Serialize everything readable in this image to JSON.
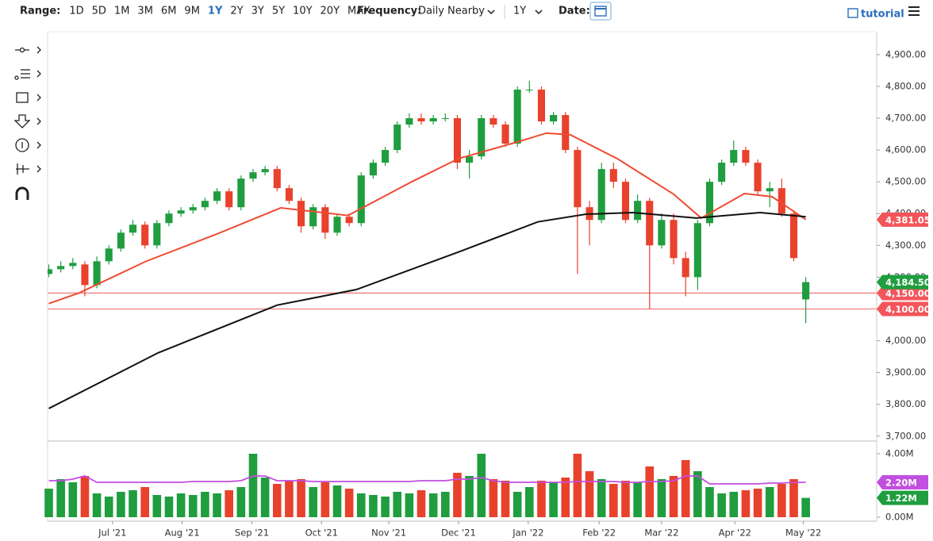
{
  "toolbar": {
    "range_label": "Range:",
    "ranges": [
      "1D",
      "5D",
      "1M",
      "3M",
      "6M",
      "9M",
      "1Y",
      "2Y",
      "3Y",
      "5Y",
      "10Y",
      "20Y",
      "MAX"
    ],
    "active_range": "1Y",
    "frequency_label": "Frequency:",
    "frequency": "Daily Nearby",
    "period": "1Y",
    "date_label": "Date:",
    "tutorial": "tutorial"
  },
  "chart_data": {
    "type": "candlestick",
    "up_color": "#1f9d3f",
    "down_color": "#e8412c",
    "open": [
      4210,
      4225,
      4235,
      4240,
      4175,
      4250,
      4290,
      4340,
      4365,
      4300,
      4370,
      4400,
      4410,
      4420,
      4440,
      4470,
      4420,
      4510,
      4530,
      4540,
      4480,
      4440,
      4360,
      4420,
      4340,
      4390,
      4370,
      4520,
      4560,
      4600,
      4680,
      4700,
      4690,
      4700,
      4700,
      4560,
      4580,
      4700,
      4680,
      4620,
      4790,
      4790,
      4690,
      4710,
      4600,
      4420,
      4380,
      4540,
      4500,
      4380,
      4440,
      4300,
      4380,
      4260,
      4200,
      4370,
      4500,
      4560,
      4600,
      4560,
      4470,
      4480,
      4400,
      4130
    ],
    "high": [
      4240,
      4250,
      4260,
      4250,
      4265,
      4300,
      4350,
      4380,
      4375,
      4380,
      4410,
      4420,
      4430,
      4450,
      4480,
      4480,
      4520,
      4540,
      4550,
      4550,
      4490,
      4450,
      4430,
      4430,
      4400,
      4400,
      4530,
      4570,
      4610,
      4690,
      4715,
      4715,
      4710,
      4715,
      4710,
      4600,
      4710,
      4710,
      4690,
      4800,
      4818,
      4800,
      4720,
      4720,
      4610,
      4440,
      4560,
      4560,
      4510,
      4460,
      4450,
      4400,
      4400,
      4280,
      4380,
      4510,
      4570,
      4630,
      4610,
      4570,
      4500,
      4510,
      4410,
      4200
    ],
    "low": [
      4200,
      4215,
      4225,
      4140,
      4165,
      4240,
      4280,
      4330,
      4290,
      4290,
      4360,
      4390,
      4400,
      4410,
      4430,
      4410,
      4410,
      4500,
      4520,
      4470,
      4430,
      4340,
      4350,
      4320,
      4330,
      4360,
      4360,
      4510,
      4550,
      4590,
      4670,
      4680,
      4680,
      4690,
      4540,
      4510,
      4570,
      4670,
      4610,
      4610,
      4780,
      4680,
      4680,
      4590,
      4210,
      4300,
      4370,
      4480,
      4370,
      4370,
      4100,
      4290,
      4240,
      4140,
      4160,
      4360,
      4490,
      4550,
      4550,
      4460,
      4420,
      4390,
      4250,
      4055
    ],
    "close": [
      4225,
      4235,
      4245,
      4175,
      4250,
      4290,
      4340,
      4365,
      4300,
      4370,
      4400,
      4410,
      4420,
      4440,
      4470,
      4420,
      4510,
      4530,
      4540,
      4480,
      4440,
      4360,
      4420,
      4340,
      4390,
      4370,
      4520,
      4560,
      4600,
      4680,
      4700,
      4690,
      4700,
      4700,
      4560,
      4580,
      4700,
      4680,
      4620,
      4790,
      4790,
      4690,
      4710,
      4600,
      4420,
      4380,
      4540,
      4500,
      4380,
      4440,
      4300,
      4380,
      4260,
      4200,
      4370,
      4500,
      4560,
      4600,
      4560,
      4470,
      4480,
      4400,
      4260,
      4184.5
    ],
    "close_label": "4,184.50",
    "xlim": [
      -0.1,
      68.9
    ],
    "xticks": [
      {
        "value": 5.3,
        "label": "Jul '21"
      },
      {
        "value": 11.1,
        "label": "Aug '21"
      },
      {
        "value": 16.9,
        "label": "Sep '21"
      },
      {
        "value": 22.7,
        "label": "Oct '21"
      },
      {
        "value": 28.3,
        "label": "Nov '21"
      },
      {
        "value": 34.1,
        "label": "Dec '21"
      },
      {
        "value": 39.9,
        "label": "Jan '22"
      },
      {
        "value": 45.8,
        "label": "Feb '22"
      },
      {
        "value": 51.0,
        "label": "Mar '22"
      },
      {
        "value": 57.1,
        "label": "Apr '22"
      },
      {
        "value": 62.8,
        "label": "May '22"
      }
    ],
    "ylim": [
      3687,
      4972
    ],
    "yticks": [
      {
        "value": 3700,
        "label": "3,700.00"
      },
      {
        "value": 3800,
        "label": "3,800.00"
      },
      {
        "value": 3900,
        "label": "3,900.00"
      },
      {
        "value": 4000,
        "label": "4,000.00"
      },
      {
        "value": 4100,
        "label": "4,100.00"
      },
      {
        "value": 4200,
        "label": "4,200.00"
      },
      {
        "value": 4300,
        "label": "4,300.00"
      },
      {
        "value": 4400,
        "label": "4,400.00"
      },
      {
        "value": 4500,
        "label": "4,500.00"
      },
      {
        "value": 4600,
        "label": "4,600.00"
      },
      {
        "value": 4700,
        "label": "4,700.00"
      },
      {
        "value": 4800,
        "label": "4,800.00"
      },
      {
        "value": 4900,
        "label": "4,900.00"
      }
    ],
    "levels": [
      {
        "value": 4150,
        "label": "4,150.00",
        "color": "#f08080"
      },
      {
        "value": 4100,
        "label": "4,100.00",
        "color": "#f08080"
      }
    ],
    "lines": [
      {
        "color": "#ee4b33",
        "x": [
          0,
          2.5,
          8.1,
          14.0,
          19.3,
          24.9,
          30.2,
          34.1,
          38.8,
          41.4,
          43.4,
          47.3,
          52.0,
          54.3,
          57.9,
          60.2,
          63
        ],
        "values": [
          4117,
          4150,
          4250,
          4336,
          4418,
          4394,
          4500,
          4573,
          4623,
          4653,
          4648,
          4573,
          4461,
          4386,
          4463,
          4453,
          4381.05
        ],
        "last_label": "4,381.05"
      },
      {
        "color": "#111111",
        "x": [
          0,
          9.1,
          19.0,
          25.6,
          34.1,
          40.7,
          44.7,
          48.6,
          53.9,
          59.2,
          63
        ],
        "values": [
          3787,
          3962,
          4112,
          4161,
          4279,
          4374,
          4398,
          4403,
          4386,
          4403,
          4390
        ]
      }
    ],
    "volume": [
      1.8,
      2.4,
      2.2,
      2.6,
      1.5,
      1.3,
      1.6,
      1.7,
      1.9,
      1.4,
      1.3,
      1.5,
      1.4,
      1.6,
      1.5,
      1.7,
      1.9,
      4.0,
      2.5,
      2.1,
      2.3,
      2.4,
      1.9,
      2.2,
      2.0,
      1.8,
      1.5,
      1.4,
      1.3,
      1.6,
      1.5,
      1.7,
      1.5,
      1.6,
      2.8,
      2.6,
      4.0,
      2.4,
      2.3,
      1.6,
      1.9,
      2.3,
      2.2,
      2.5,
      4.0,
      2.9,
      2.4,
      2.1,
      2.3,
      2.2,
      3.2,
      2.4,
      2.6,
      3.6,
      2.9,
      1.9,
      1.5,
      1.6,
      1.7,
      1.8,
      1.9,
      2.1,
      2.4,
      1.22
    ],
    "volume_label": "1.22M",
    "volume_avg": {
      "color": "#c14fdf",
      "values": [
        2.3,
        2.3,
        2.4,
        2.6,
        2.2,
        2.2,
        2.2,
        2.2,
        2.2,
        2.2,
        2.2,
        2.2,
        2.25,
        2.25,
        2.25,
        2.25,
        2.3,
        2.6,
        2.6,
        2.3,
        2.3,
        2.3,
        2.25,
        2.25,
        2.25,
        2.25,
        2.25,
        2.25,
        2.25,
        2.25,
        2.25,
        2.3,
        2.3,
        2.3,
        2.4,
        2.4,
        2.5,
        2.3,
        2.2,
        2.2,
        2.2,
        2.2,
        2.2,
        2.2,
        2.25,
        2.25,
        2.25,
        2.25,
        2.2,
        2.2,
        2.25,
        2.25,
        2.3,
        2.6,
        2.6,
        2.1,
        2.1,
        2.1,
        2.1,
        2.1,
        2.15,
        2.15,
        2.2,
        2.2
      ],
      "last_label": "2.20M"
    },
    "volume_ylim": [
      -0.25,
      4.75
    ],
    "volume_yticks": [
      {
        "value": 4,
        "label": "4.00M"
      },
      {
        "value": 0,
        "label": "0.00M"
      }
    ]
  }
}
